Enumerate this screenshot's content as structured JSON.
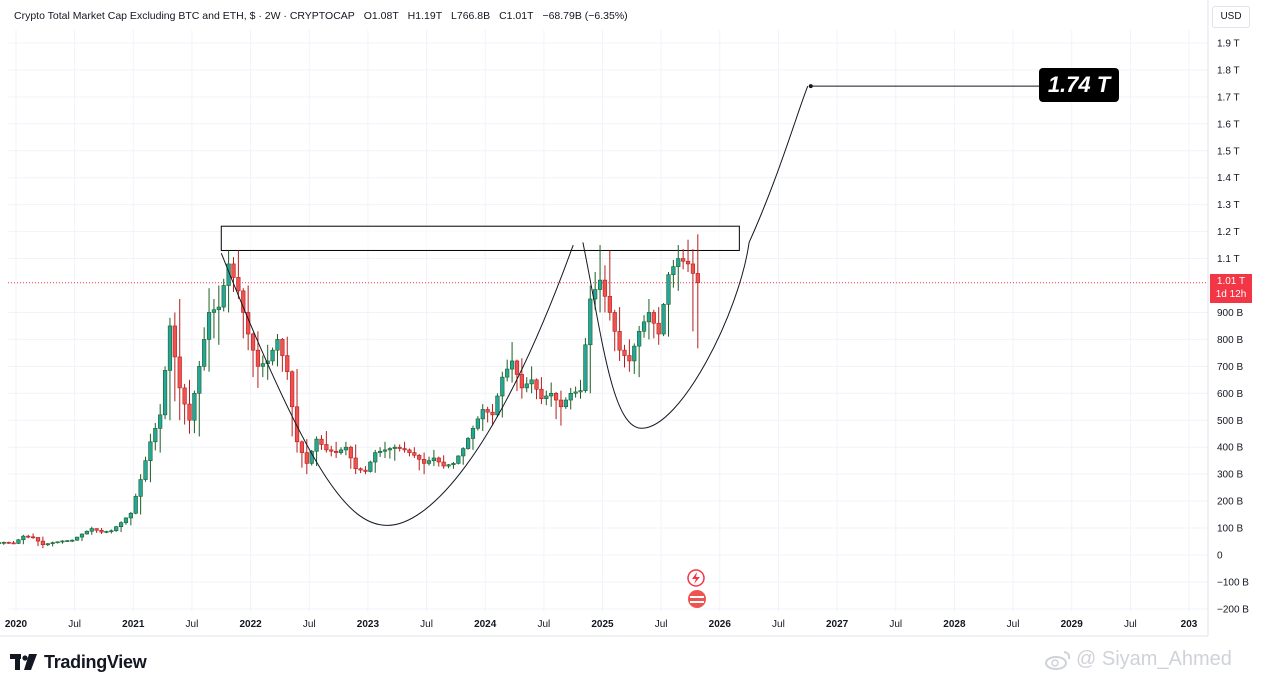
{
  "header": {
    "title": "Crypto Total Market Cap Excluding BTC and ETH, $ · 2W · CRYPTOCAP",
    "open": "O1.08T",
    "high": "H1.19T",
    "low": "L766.8B",
    "close": "C1.01T",
    "change": "−68.79B (−6.35%)"
  },
  "currency_button": "USD",
  "price_tag": {
    "value": "1.01 T",
    "countdown": "1d 12h"
  },
  "target_label": "1.74 T",
  "brand": "TradingView",
  "watermark": "@ Siyam_Ahmed",
  "colors": {
    "up": "#26a69a",
    "down": "#ef5350",
    "up_dark": "#1b5e20",
    "down_dark": "#b71c1c",
    "grid": "#f0f3fa",
    "price_line": "#f23645",
    "text": "#131722"
  },
  "chart_data": {
    "type": "candlestick",
    "y_unit": "USD",
    "y_axis_ticks": [
      {
        "value": 1900000000000.0,
        "label": "1.9 T"
      },
      {
        "value": 1800000000000.0,
        "label": "1.8 T"
      },
      {
        "value": 1700000000000.0,
        "label": "1.7 T"
      },
      {
        "value": 1600000000000.0,
        "label": "1.6 T"
      },
      {
        "value": 1500000000000.0,
        "label": "1.5 T"
      },
      {
        "value": 1400000000000.0,
        "label": "1.4 T"
      },
      {
        "value": 1300000000000.0,
        "label": "1.3 T"
      },
      {
        "value": 1200000000000.0,
        "label": "1.2 T"
      },
      {
        "value": 1100000000000.0,
        "label": "1.1 T"
      },
      {
        "value": 900000000000.0,
        "label": "900 B"
      },
      {
        "value": 800000000000.0,
        "label": "800 B"
      },
      {
        "value": 700000000000.0,
        "label": "700 B"
      },
      {
        "value": 600000000000.0,
        "label": "600 B"
      },
      {
        "value": 500000000000.0,
        "label": "500 B"
      },
      {
        "value": 400000000000.0,
        "label": "400 B"
      },
      {
        "value": 300000000000.0,
        "label": "300 B"
      },
      {
        "value": 200000000000.0,
        "label": "200 B"
      },
      {
        "value": 100000000000.0,
        "label": "100 B"
      },
      {
        "value": 0,
        "label": "0"
      },
      {
        "value": -100000000000.0,
        "label": "−100 B"
      },
      {
        "value": -200000000000.0,
        "label": "−200 B"
      }
    ],
    "ylim": [
      -210000000000.0,
      1940000000000.0
    ],
    "x_axis_ticks": [
      {
        "date": "2020-01",
        "label": "2020"
      },
      {
        "date": "2020-07",
        "label": "Jul"
      },
      {
        "date": "2021-01",
        "label": "2021"
      },
      {
        "date": "2021-07",
        "label": "Jul"
      },
      {
        "date": "2022-01",
        "label": "2022"
      },
      {
        "date": "2022-07",
        "label": "Jul"
      },
      {
        "date": "2023-01",
        "label": "2023"
      },
      {
        "date": "2023-07",
        "label": "Jul"
      },
      {
        "date": "2024-01",
        "label": "2024"
      },
      {
        "date": "2024-07",
        "label": "Jul"
      },
      {
        "date": "2025-01",
        "label": "2025"
      },
      {
        "date": "2025-07",
        "label": "Jul"
      },
      {
        "date": "2026-01",
        "label": "2026"
      },
      {
        "date": "2026-07",
        "label": "Jul"
      },
      {
        "date": "2027-01",
        "label": "2027"
      },
      {
        "date": "2027-07",
        "label": "Jul"
      },
      {
        "date": "2028-01",
        "label": "2028"
      },
      {
        "date": "2028-07",
        "label": "Jul"
      },
      {
        "date": "2029-01",
        "label": "2029"
      },
      {
        "date": "2029-07",
        "label": "Jul"
      },
      {
        "date": "2030-01",
        "label": "203"
      }
    ],
    "current_price": 1010000000000.0,
    "resistance_box": {
      "from": "2021-10",
      "to": "2026-03",
      "low": 1130000000000.0,
      "high": 1220000000000.0
    },
    "target": {
      "date": "2026-10",
      "value": 1740000000000.0
    },
    "series": [
      {
        "d": "2019-11",
        "c": [
          45,
          50,
          38,
          47
        ]
      },
      {
        "d": "2019-12",
        "c": [
          47,
          52,
          40,
          43
        ]
      },
      {
        "d": "2020-01",
        "c": [
          43,
          75,
          40,
          70
        ]
      },
      {
        "d": "2020-02",
        "c": [
          70,
          80,
          60,
          65
        ]
      },
      {
        "d": "2020-03",
        "c": [
          65,
          68,
          25,
          38
        ]
      },
      {
        "d": "2020-04",
        "c": [
          38,
          50,
          32,
          46
        ]
      },
      {
        "d": "2020-05",
        "c": [
          46,
          55,
          42,
          52
        ]
      },
      {
        "d": "2020-06",
        "c": [
          52,
          58,
          48,
          55
        ]
      },
      {
        "d": "2020-07",
        "c": [
          55,
          80,
          52,
          78
        ]
      },
      {
        "d": "2020-08",
        "c": [
          78,
          105,
          75,
          98
        ]
      },
      {
        "d": "2020-09",
        "c": [
          98,
          100,
          78,
          85
        ]
      },
      {
        "d": "2020-10",
        "c": [
          85,
          95,
          80,
          90
        ]
      },
      {
        "d": "2020-11",
        "c": [
          90,
          125,
          85,
          120
        ]
      },
      {
        "d": "2020-12",
        "c": [
          120,
          160,
          110,
          155
        ]
      },
      {
        "d": "2021-01",
        "c": [
          155,
          300,
          150,
          280
        ]
      },
      {
        "d": "2021-02",
        "c": [
          280,
          450,
          270,
          420
        ]
      },
      {
        "d": "2021-03",
        "c": [
          420,
          560,
          380,
          520
        ]
      },
      {
        "d": "2021-04",
        "c": [
          520,
          880,
          500,
          850
        ]
      },
      {
        "d": "2021-05",
        "c": [
          850,
          950,
          500,
          620
        ]
      },
      {
        "d": "2021-06",
        "c": [
          620,
          650,
          450,
          500
        ]
      },
      {
        "d": "2021-07",
        "c": [
          500,
          720,
          440,
          700
        ]
      },
      {
        "d": "2021-08",
        "c": [
          700,
          990,
          680,
          900
        ]
      },
      {
        "d": "2021-09",
        "c": [
          900,
          1000,
          780,
          920
        ]
      },
      {
        "d": "2021-10",
        "c": [
          920,
          1130,
          900,
          1080
        ]
      },
      {
        "d": "2021-11",
        "c": [
          1080,
          1130,
          950,
          980
        ]
      },
      {
        "d": "2021-12",
        "c": [
          980,
          1000,
          760,
          820
        ]
      },
      {
        "d": "2022-01",
        "c": [
          820,
          830,
          620,
          700
        ]
      },
      {
        "d": "2022-02",
        "c": [
          700,
          780,
          650,
          720
        ]
      },
      {
        "d": "2022-03",
        "c": [
          720,
          820,
          700,
          800
        ]
      },
      {
        "d": "2022-04",
        "c": [
          800,
          810,
          650,
          680
        ]
      },
      {
        "d": "2022-05",
        "c": [
          680,
          690,
          380,
          420
        ]
      },
      {
        "d": "2022-06",
        "c": [
          420,
          430,
          300,
          340
        ]
      },
      {
        "d": "2022-07",
        "c": [
          340,
          440,
          330,
          430
        ]
      },
      {
        "d": "2022-08",
        "c": [
          430,
          460,
          380,
          390
        ]
      },
      {
        "d": "2022-09",
        "c": [
          390,
          420,
          360,
          380
        ]
      },
      {
        "d": "2022-10",
        "c": [
          380,
          420,
          370,
          400
        ]
      },
      {
        "d": "2022-11",
        "c": [
          400,
          410,
          300,
          320
        ]
      },
      {
        "d": "2022-12",
        "c": [
          320,
          330,
          300,
          310
        ]
      },
      {
        "d": "2023-01",
        "c": [
          310,
          390,
          305,
          380
        ]
      },
      {
        "d": "2023-02",
        "c": [
          380,
          420,
          360,
          390
        ]
      },
      {
        "d": "2023-03",
        "c": [
          390,
          410,
          350,
          400
        ]
      },
      {
        "d": "2023-04",
        "c": [
          400,
          420,
          380,
          390
        ]
      },
      {
        "d": "2023-05",
        "c": [
          390,
          400,
          360,
          370
        ]
      },
      {
        "d": "2023-06",
        "c": [
          370,
          380,
          300,
          340
        ]
      },
      {
        "d": "2023-07",
        "c": [
          340,
          390,
          330,
          360
        ]
      },
      {
        "d": "2023-08",
        "c": [
          360,
          370,
          320,
          330
        ]
      },
      {
        "d": "2023-09",
        "c": [
          330,
          345,
          320,
          340
        ]
      },
      {
        "d": "2023-10",
        "c": [
          340,
          400,
          335,
          395
        ]
      },
      {
        "d": "2023-11",
        "c": [
          395,
          480,
          390,
          470
        ]
      },
      {
        "d": "2023-12",
        "c": [
          470,
          560,
          460,
          540
        ]
      },
      {
        "d": "2024-01",
        "c": [
          540,
          560,
          480,
          520
        ]
      },
      {
        "d": "2024-02",
        "c": [
          520,
          680,
          510,
          660
        ]
      },
      {
        "d": "2024-03",
        "c": [
          660,
          790,
          640,
          720
        ]
      },
      {
        "d": "2024-04",
        "c": [
          720,
          730,
          580,
          620
        ]
      },
      {
        "d": "2024-05",
        "c": [
          620,
          700,
          600,
          650
        ]
      },
      {
        "d": "2024-06",
        "c": [
          650,
          660,
          560,
          580
        ]
      },
      {
        "d": "2024-07",
        "c": [
          580,
          640,
          550,
          600
        ]
      },
      {
        "d": "2024-08",
        "c": [
          600,
          610,
          480,
          550
        ]
      },
      {
        "d": "2024-09",
        "c": [
          550,
          620,
          540,
          600
        ]
      },
      {
        "d": "2024-10",
        "c": [
          600,
          650,
          580,
          610
        ]
      },
      {
        "d": "2024-11",
        "c": [
          610,
          1000,
          600,
          950
        ]
      },
      {
        "d": "2024-12",
        "c": [
          950,
          1150,
          900,
          1020
        ]
      },
      {
        "d": "2025-01",
        "c": [
          1020,
          1130,
          870,
          900
        ]
      },
      {
        "d": "2025-02",
        "c": [
          900,
          920,
          720,
          760
        ]
      },
      {
        "d": "2025-03",
        "c": [
          760,
          800,
          680,
          720
        ]
      },
      {
        "d": "2025-04",
        "c": [
          720,
          850,
          660,
          830
        ]
      },
      {
        "d": "2025-05",
        "c": [
          830,
          950,
          800,
          900
        ]
      },
      {
        "d": "2025-06",
        "c": [
          900,
          920,
          780,
          820
        ]
      },
      {
        "d": "2025-07",
        "c": [
          820,
          1050,
          810,
          1040
        ]
      },
      {
        "d": "2025-08",
        "c": [
          1040,
          1150,
          980,
          1100
        ]
      },
      {
        "d": "2025-09",
        "c": [
          1100,
          1170,
          1050,
          1080
        ]
      },
      {
        "d": "2025-10",
        "c": [
          1080,
          1190,
          767,
          1010
        ]
      }
    ],
    "candle_note": "OHLC values in billions USD"
  }
}
